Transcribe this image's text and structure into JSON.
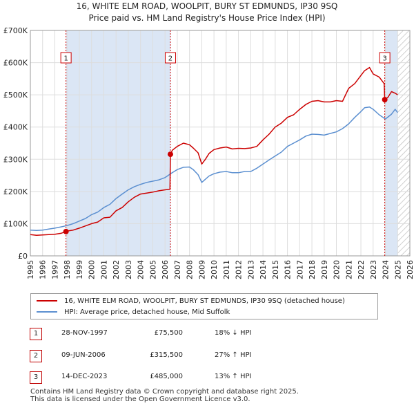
{
  "title_line1": "16, WHITE ELM ROAD, WOOLPIT, BURY ST EDMUNDS, IP30 9SQ",
  "title_line2": "Price paid vs. HM Land Registry's House Price Index (HPI)",
  "legend": {
    "property": "16, WHITE ELM ROAD, WOOLPIT, BURY ST EDMUNDS, IP30 9SQ (detached house)",
    "hpi": "HPI: Average price, detached house, Mid Suffolk"
  },
  "colors": {
    "property": "#cc0000",
    "hpi": "#5b8fd0",
    "band": "#dbe6f5",
    "hatch": "#bfbfbf"
  },
  "transactions": [
    {
      "num": "1",
      "date": "28-NOV-1997",
      "price": "£75,500",
      "hpi": "18% ↓ HPI"
    },
    {
      "num": "2",
      "date": "09-JUN-2006",
      "price": "£315,500",
      "hpi": "27% ↑ HPI"
    },
    {
      "num": "3",
      "date": "14-DEC-2023",
      "price": "£485,000",
      "hpi": "13% ↑ HPI"
    }
  ],
  "footer": {
    "line1": "Contains HM Land Registry data © Crown copyright and database right 2025.",
    "line2": "This data is licensed under the Open Government Licence v3.0."
  },
  "chart_data": {
    "type": "line",
    "title": "16, WHITE ELM ROAD, WOOLPIT, BURY ST EDMUNDS, IP30 9SQ — Price paid vs. HM Land Registry's House Price Index (HPI)",
    "xlabel": "",
    "ylabel": "",
    "xlim": [
      1995,
      2026
    ],
    "ylim": [
      0,
      700000
    ],
    "x_ticks": [
      1995,
      1996,
      1997,
      1998,
      1999,
      2000,
      2001,
      2002,
      2003,
      2004,
      2005,
      2006,
      2007,
      2008,
      2009,
      2010,
      2011,
      2012,
      2013,
      2014,
      2015,
      2016,
      2017,
      2018,
      2019,
      2020,
      2021,
      2022,
      2023,
      2024,
      2025,
      2026
    ],
    "y_ticks": [
      0,
      100000,
      200000,
      300000,
      400000,
      500000,
      600000,
      700000
    ],
    "y_tick_labels": [
      "£0",
      "£100K",
      "£200K",
      "£300K",
      "£400K",
      "£500K",
      "£600K",
      "£700K"
    ],
    "grid": true,
    "shaded_ranges": [
      [
        1997.91,
        2006.44
      ],
      [
        2023.95,
        2025.0
      ]
    ],
    "hatched_range": [
      2025.0,
      2026.0
    ],
    "markers": [
      {
        "label": "1",
        "x": 1997.91,
        "y": 75500
      },
      {
        "label": "2",
        "x": 2006.44,
        "y": 315500
      },
      {
        "label": "3",
        "x": 2023.95,
        "y": 485000
      }
    ],
    "series": [
      {
        "name": "16, WHITE ELM ROAD, WOOLPIT, BURY ST EDMUNDS, IP30 9SQ (detached house)",
        "x": [
          1995,
          1995.5,
          1996,
          1996.5,
          1997,
          1997.5,
          1997.91,
          1998,
          1998.5,
          1999,
          1999.5,
          2000,
          2000.5,
          2001,
          2001.5,
          2002,
          2002.5,
          2003,
          2003.5,
          2004,
          2004.5,
          2005,
          2005.5,
          2006,
          2006.4,
          2006.44,
          2006.6,
          2007,
          2007.5,
          2008,
          2008.3,
          2008.7,
          2009,
          2009.3,
          2009.6,
          2010,
          2010.5,
          2011,
          2011.5,
          2012,
          2012.5,
          2013,
          2013.5,
          2014,
          2014.5,
          2015,
          2015.5,
          2016,
          2016.5,
          2017,
          2017.5,
          2018,
          2018.5,
          2019,
          2019.5,
          2020,
          2020.5,
          2021,
          2021.5,
          2022,
          2022.3,
          2022.7,
          2023,
          2023.5,
          2023.9,
          2023.95,
          2024.2,
          2024.5,
          2024.8,
          2025
        ],
        "y": [
          66000,
          64000,
          65000,
          66000,
          67000,
          70000,
          75500,
          77000,
          80000,
          86000,
          93000,
          100000,
          105000,
          118000,
          120000,
          140000,
          150000,
          168000,
          182000,
          192000,
          195000,
          198000,
          202000,
          205000,
          207000,
          315500,
          328000,
          340000,
          350000,
          345000,
          335000,
          320000,
          285000,
          300000,
          318000,
          330000,
          335000,
          338000,
          332000,
          334000,
          333000,
          335000,
          340000,
          360000,
          378000,
          400000,
          412000,
          430000,
          438000,
          455000,
          470000,
          480000,
          482000,
          478000,
          478000,
          482000,
          480000,
          520000,
          535000,
          560000,
          575000,
          585000,
          565000,
          555000,
          535000,
          485000,
          492000,
          510000,
          505000,
          500000
        ]
      },
      {
        "name": "HPI: Average price, detached house, Mid Suffolk",
        "x": [
          1995,
          1995.5,
          1996,
          1996.5,
          1997,
          1997.5,
          1998,
          1998.5,
          1999,
          1999.5,
          2000,
          2000.5,
          2001,
          2001.5,
          2002,
          2002.5,
          2003,
          2003.5,
          2004,
          2004.5,
          2005,
          2005.5,
          2006,
          2006.5,
          2007,
          2007.5,
          2008,
          2008.3,
          2008.7,
          2009,
          2009.3,
          2009.6,
          2010,
          2010.5,
          2011,
          2011.5,
          2012,
          2012.5,
          2013,
          2013.5,
          2014,
          2014.5,
          2015,
          2015.5,
          2016,
          2016.5,
          2017,
          2017.5,
          2018,
          2018.5,
          2019,
          2019.5,
          2020,
          2020.5,
          2021,
          2021.5,
          2022,
          2022.3,
          2022.7,
          2023,
          2023.5,
          2024,
          2024.5,
          2024.8,
          2025
        ],
        "y": [
          80000,
          79000,
          80000,
          83000,
          86000,
          90000,
          94000,
          100000,
          108000,
          116000,
          128000,
          136000,
          150000,
          160000,
          178000,
          192000,
          205000,
          215000,
          222000,
          228000,
          232000,
          236000,
          243000,
          256000,
          268000,
          275000,
          276000,
          268000,
          252000,
          228000,
          238000,
          248000,
          255000,
          260000,
          262000,
          258000,
          258000,
          262000,
          262000,
          272000,
          285000,
          298000,
          310000,
          322000,
          340000,
          350000,
          360000,
          372000,
          378000,
          377000,
          375000,
          380000,
          385000,
          395000,
          410000,
          430000,
          448000,
          460000,
          462000,
          455000,
          438000,
          425000,
          440000,
          455000,
          445000
        ]
      }
    ]
  }
}
